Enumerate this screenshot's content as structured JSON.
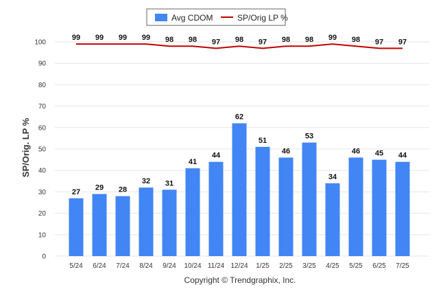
{
  "chart_data": {
    "type": "bar",
    "categories": [
      "5/24",
      "6/24",
      "7/24",
      "8/24",
      "9/24",
      "10/24",
      "11/24",
      "12/24",
      "1/25",
      "2/25",
      "3/25",
      "4/25",
      "5/25",
      "6/25",
      "7/25"
    ],
    "series": [
      {
        "name": "Avg CDOM",
        "kind": "bar",
        "color": "#4285f4",
        "values": [
          27,
          29,
          28,
          32,
          31,
          41,
          44,
          62,
          51,
          46,
          53,
          34,
          46,
          45,
          44
        ]
      },
      {
        "name": "SP/Orig LP %",
        "kind": "line",
        "color": "#c00000",
        "values": [
          99,
          99,
          99,
          99,
          98,
          98,
          97,
          98,
          97,
          98,
          98,
          99,
          98,
          97,
          97
        ]
      }
    ],
    "ylabel": "SP/Orig. LP %",
    "ylim": [
      0,
      100
    ],
    "yticks": [
      0,
      10,
      20,
      30,
      40,
      50,
      60,
      70,
      80,
      90,
      100
    ],
    "grid": true,
    "legend_position": "top-center"
  },
  "footer": {
    "copyright": "Copyright © Trendgraphix, Inc."
  }
}
